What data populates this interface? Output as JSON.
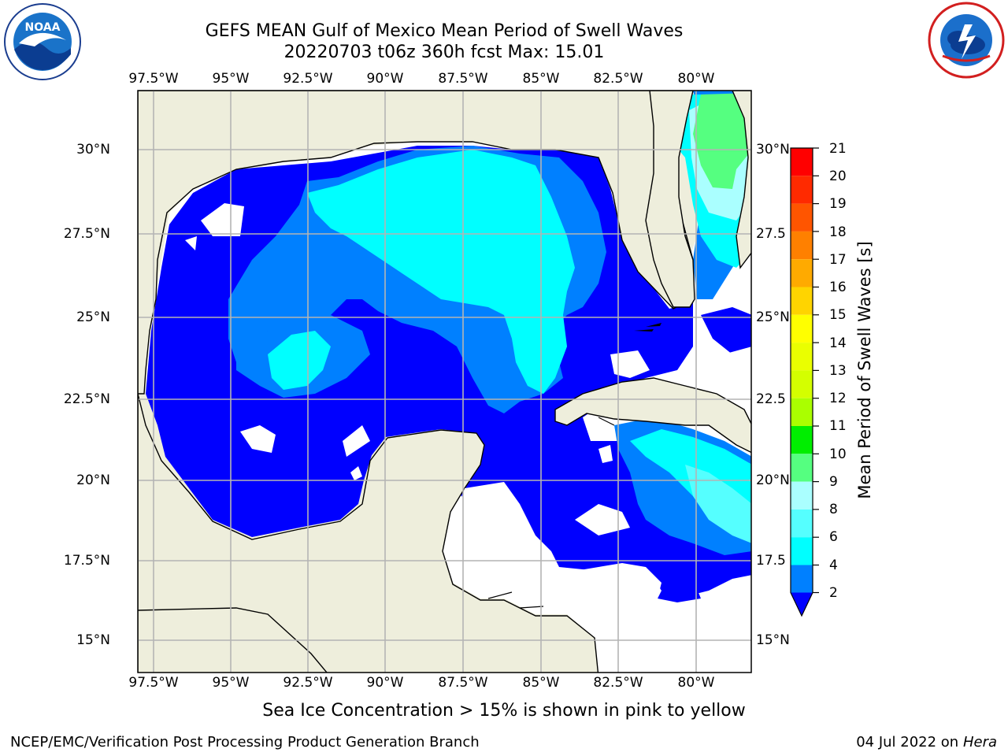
{
  "title": {
    "line1": "GEFS MEAN Gulf of Mexico Mean Period of Swell Waves",
    "line2": "20220703 t06z 360h fcst   Max: 15.01"
  },
  "logos": {
    "left": {
      "name": "noaa-logo",
      "text": "NOAA",
      "ring_text": "NATIONAL OCEANIC AND ATMOSPHERIC ADMINISTRATION · U.S. DEPARTMENT OF COMMERCE"
    },
    "right": {
      "name": "nws-logo",
      "ring_text": "NATIONAL WEATHER SERVICE"
    }
  },
  "map": {
    "longitude_ticks": [
      "97.5°W",
      "95°W",
      "92.5°W",
      "90°W",
      "87.5°W",
      "85°W",
      "82.5°W",
      "80°W"
    ],
    "latitude_ticks_left": [
      "30°N",
      "27.5°N",
      "25°N",
      "22.5°N",
      "20°N",
      "17.5°N",
      "15°N"
    ],
    "latitude_ticks_right": [
      "30°N",
      "27.5",
      "25°N",
      "22.5",
      "20°N",
      "17.5",
      "15°N"
    ],
    "colors": {
      "land": "#eeeedc",
      "grid": "#b4b4b4",
      "coast": "#000000"
    }
  },
  "colorbar": {
    "title": "Mean Period of Swell Waves [s]",
    "labels": [
      "21",
      "20",
      "19",
      "18",
      "17",
      "16",
      "15",
      "14",
      "13",
      "12",
      "11",
      "10",
      "9",
      "8",
      "6",
      "4",
      "2"
    ],
    "colors": [
      "#ff0000",
      "#ff2a00",
      "#ff5500",
      "#ff8000",
      "#ffaa00",
      "#ffd400",
      "#ffff00",
      "#eaff00",
      "#d4ff00",
      "#aaff00",
      "#55ff00",
      "#00ee00",
      "#55ff80",
      "#aaffff",
      "#55ffff",
      "#00ffff",
      "#0080ff"
    ],
    "extend_color": "#0000ff"
  },
  "note": "Sea Ice Concentration > 15% is shown in pink to yellow",
  "credit": {
    "left": "NCEP/EMC/Verification Post Processing Product Generation Branch",
    "date": "04 Jul 2022 on ",
    "machine": "Hera"
  }
}
